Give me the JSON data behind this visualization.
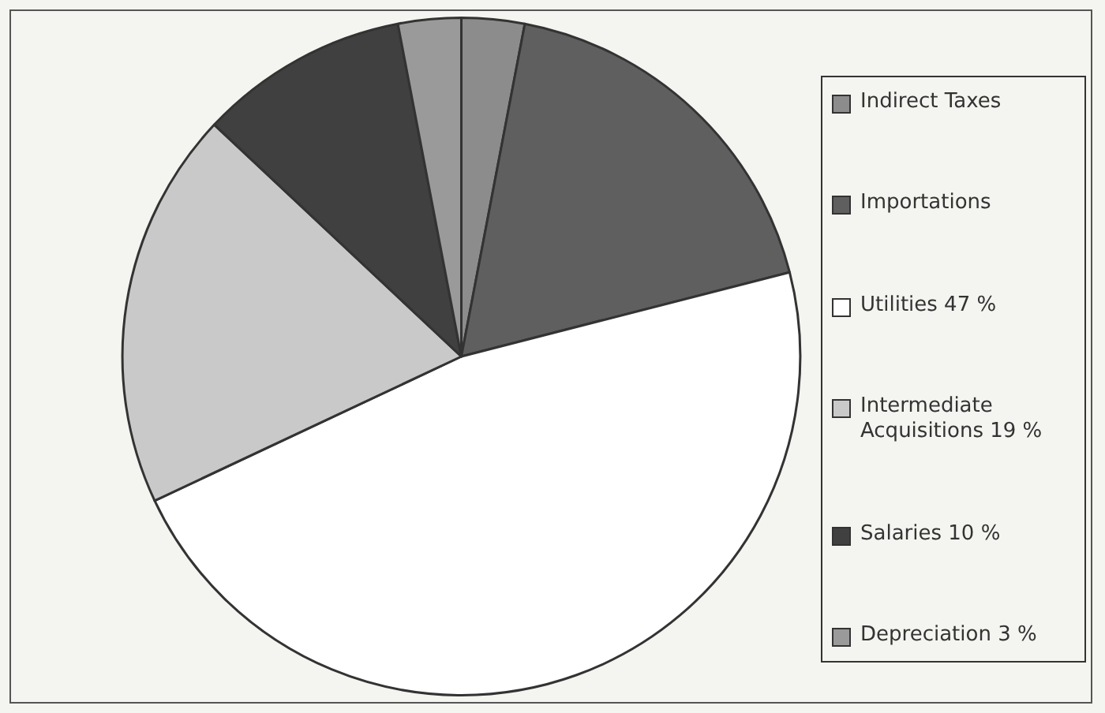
{
  "chart_data": {
    "type": "pie",
    "categories": [
      "Indirect Taxes",
      "Importations",
      "Utilities 47 %",
      "Intermediate Acquisitions 19 %",
      "Salaries 10 %",
      "Depreciation 3 %"
    ],
    "values": [
      3,
      18,
      47,
      19,
      10,
      3
    ],
    "colors": [
      "#8c8c8c",
      "#5f5f5f",
      "#ffffff",
      "#c9c9c9",
      "#404040",
      "#9a9a9a"
    ],
    "legend": "right"
  }
}
